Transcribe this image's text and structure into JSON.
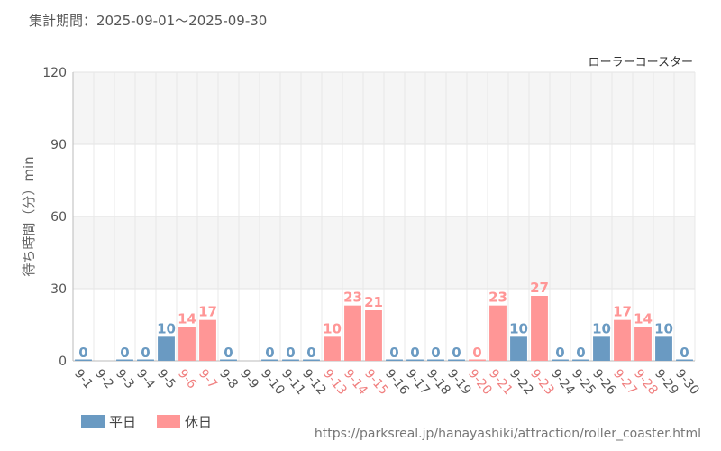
{
  "header": {
    "period": "集計期間：2025-09-01～2025-09-30",
    "url": "https://parksreal.jp/hanayashiki/attraction/roller_coaster.html"
  },
  "chart_data": {
    "type": "bar",
    "title": "ローラーコースター",
    "ylabel": "待ち時間（分）min",
    "ylim": [
      0,
      120
    ],
    "yticks": [
      0,
      30,
      60,
      90,
      120
    ],
    "categories": [
      "9-1",
      "9-2",
      "9-3",
      "9-4",
      "9-5",
      "9-6",
      "9-7",
      "9-8",
      "9-9",
      "9-10",
      "9-11",
      "9-12",
      "9-13",
      "9-14",
      "9-15",
      "9-16",
      "9-17",
      "9-18",
      "9-19",
      "9-20",
      "9-21",
      "9-22",
      "9-23",
      "9-24",
      "9-25",
      "9-26",
      "9-27",
      "9-28",
      "9-29",
      "9-30"
    ],
    "values": [
      0,
      null,
      0,
      0,
      10,
      14,
      17,
      0,
      null,
      0,
      0,
      0,
      10,
      23,
      21,
      0,
      0,
      0,
      0,
      0,
      23,
      10,
      27,
      0,
      0,
      10,
      17,
      14,
      10,
      0
    ],
    "day_type": [
      "weekday",
      "weekday",
      "weekday",
      "weekday",
      "weekday",
      "holiday",
      "holiday",
      "weekday",
      "weekday",
      "weekday",
      "weekday",
      "weekday",
      "holiday",
      "holiday",
      "holiday",
      "weekday",
      "weekday",
      "weekday",
      "weekday",
      "holiday",
      "holiday",
      "weekday",
      "holiday",
      "weekday",
      "weekday",
      "weekday",
      "holiday",
      "holiday",
      "weekday",
      "weekday"
    ],
    "legend": [
      {
        "key": "weekday",
        "label": "平日",
        "color": "#6a9ac2"
      },
      {
        "key": "holiday",
        "label": "休日",
        "color": "#ff9696"
      }
    ],
    "label_colors": {
      "weekday": "#555555",
      "holiday": "#f08080"
    }
  }
}
